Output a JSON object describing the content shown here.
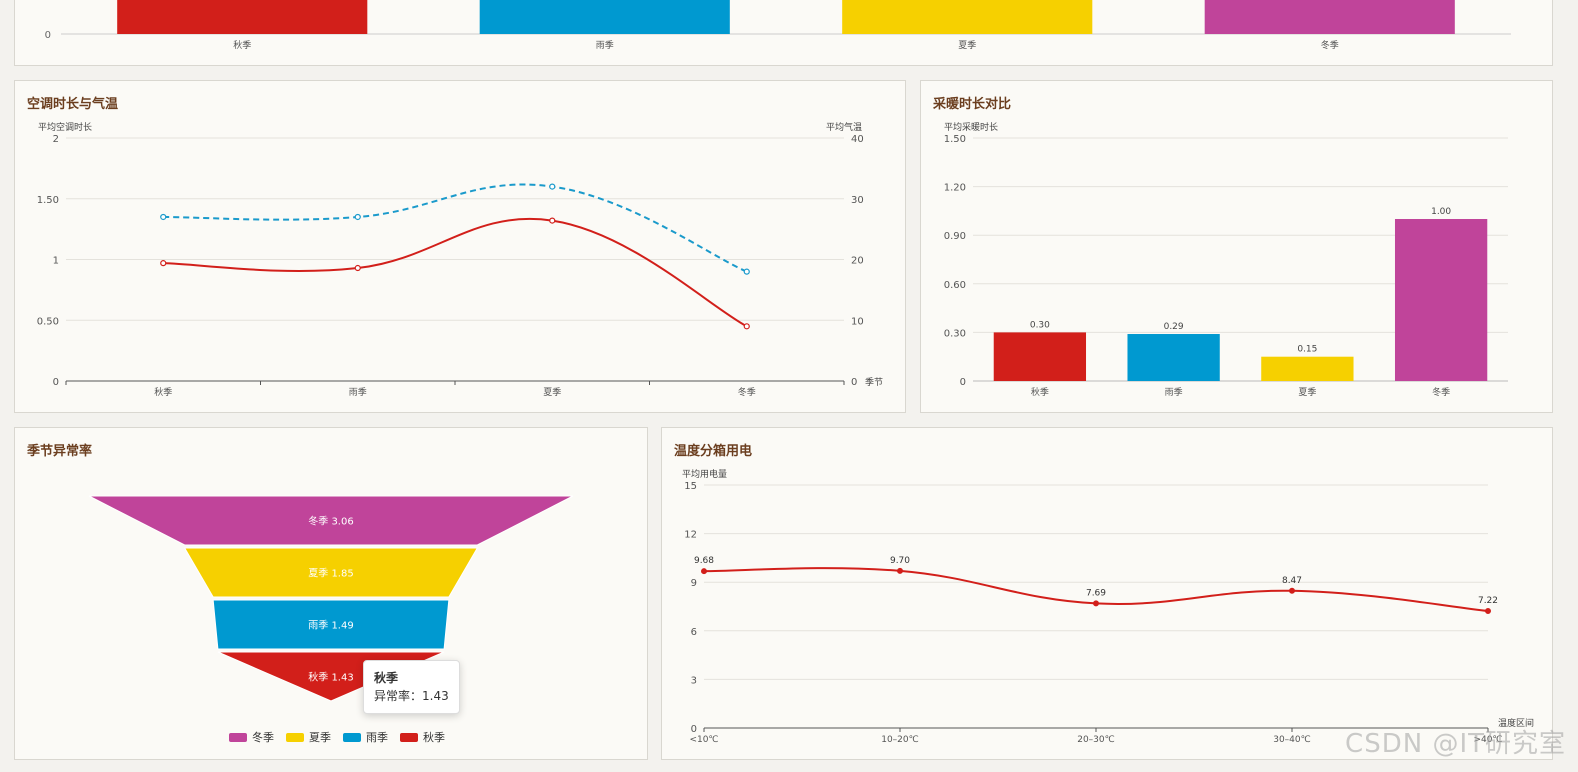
{
  "colors": {
    "autumn": "#d21f1a",
    "rain": "#0099d0",
    "summer": "#f6d000",
    "winter": "#c0449a",
    "dashed": "#1a9acb",
    "title": "#6b3e1f"
  },
  "panels": {
    "ac": {
      "title": "空调时长与气温"
    },
    "heat": {
      "title": "采暖时长对比"
    },
    "anomaly": {
      "title": "季节异常率"
    },
    "temp": {
      "title": "温度分箱用电"
    }
  },
  "tooltip": {
    "title": "秋季",
    "label": "异常率：1.43"
  },
  "watermark": "CSDN @IT研究室",
  "chart_data": [
    {
      "id": "top",
      "type": "bar",
      "title": "",
      "categories": [
        "秋季",
        "雨季",
        "夏季",
        "冬季"
      ],
      "y_zero_label": "0",
      "note": "partially visible, only bar bottoms shown"
    },
    {
      "id": "ac",
      "type": "line",
      "title": "空调时长与气温",
      "categories": [
        "秋季",
        "雨季",
        "夏季",
        "冬季"
      ],
      "xlabel": "季节",
      "ylabel": "平均空调时长",
      "ylabel_right": "平均气温",
      "ylim": [
        0,
        2
      ],
      "ylim_right": [
        0,
        40
      ],
      "yticks": [
        "0",
        "0.50",
        "1",
        "1.50",
        "2"
      ],
      "yticks_right": [
        "0",
        "10",
        "20",
        "30",
        "40"
      ],
      "series": [
        {
          "values": [
            0.97,
            0.93,
            1.32,
            0.45
          ],
          "axis": "left",
          "style": "solid"
        },
        {
          "values": [
            27,
            27,
            32,
            18
          ],
          "axis": "right",
          "style": "dashed"
        }
      ]
    },
    {
      "id": "heat",
      "type": "bar",
      "title": "采暖时长对比",
      "categories": [
        "秋季",
        "雨季",
        "夏季",
        "冬季"
      ],
      "ylabel": "平均采暖时长",
      "ylim": [
        0,
        1.5
      ],
      "yticks": [
        "0",
        "0.30",
        "0.60",
        "0.90",
        "1.20",
        "1.50"
      ],
      "values": [
        0.3,
        0.29,
        0.15,
        1.0
      ],
      "labels": [
        "0.30",
        "0.29",
        "0.15",
        "1.00"
      ]
    },
    {
      "id": "anomaly",
      "type": "funnel",
      "title": "季节异常率",
      "categories": [
        "冬季",
        "夏季",
        "雨季",
        "秋季"
      ],
      "values": [
        3.06,
        1.85,
        1.49,
        1.43
      ],
      "labels": [
        "冬季 3.06",
        "夏季 1.85",
        "雨季 1.49",
        "秋季 1.43"
      ],
      "legend": [
        "冬季",
        "夏季",
        "雨季",
        "秋季"
      ]
    },
    {
      "id": "temp",
      "type": "line",
      "title": "温度分箱用电",
      "categories": [
        "<10℃",
        "10–20℃",
        "20–30℃",
        "30–40℃",
        ">40℃"
      ],
      "xlabel": "温度区间",
      "ylabel": "平均用电量",
      "ylim": [
        0,
        15
      ],
      "yticks": [
        "0",
        "3",
        "6",
        "9",
        "12",
        "15"
      ],
      "values": [
        9.68,
        9.7,
        7.69,
        8.47,
        7.22
      ],
      "labels": [
        "9.68",
        "9.70",
        "7.69",
        "8.47",
        "7.22"
      ]
    }
  ]
}
